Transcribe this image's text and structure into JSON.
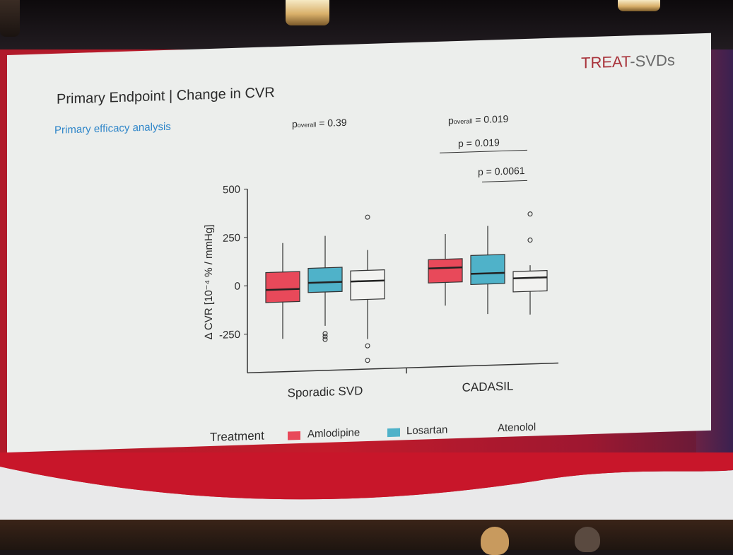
{
  "slide": {
    "brand_a": "TREAT",
    "brand_b": "-SVDs",
    "title": "Primary Endpoint | Change in CVR",
    "subtitle": "Primary efficacy analysis",
    "p_overall_label": "p",
    "p_overall_sub": "overall",
    "p_sporadic": " = 0.39",
    "p_cadasil": " = 0.019",
    "p_pair1": "p = 0.019",
    "p_pair2": "p = 0.0061"
  },
  "legend": {
    "title": "Treatment",
    "items": [
      {
        "label": "Amlodipine",
        "color": "#e8495a"
      },
      {
        "label": "Losartan",
        "color": "#4fb2c9"
      },
      {
        "label": "Atenolol",
        "color": "#f2f2f0"
      }
    ]
  },
  "chart_data": {
    "type": "box",
    "ylabel": "Δ CVR [10⁻⁴ % / mmHg]",
    "ylim": [
      -450,
      500
    ],
    "yticks": [
      500,
      250,
      0,
      -250
    ],
    "categories": [
      "Sporadic SVD",
      "CADASIL"
    ],
    "series": [
      {
        "name": "Amlodipine",
        "color": "#e8495a",
        "boxes": [
          {
            "q1": -90,
            "median": -25,
            "q3": 65,
            "whisker_low": -280,
            "whisker_high": 215,
            "outliers": []
          },
          {
            "q1": -15,
            "median": 60,
            "q3": 105,
            "whisker_low": -135,
            "whisker_high": 235,
            "outliers": []
          }
        ]
      },
      {
        "name": "Losartan",
        "color": "#4fb2c9",
        "boxes": [
          {
            "q1": -45,
            "median": 5,
            "q3": 80,
            "whisker_low": -220,
            "whisker_high": 245,
            "outliers": [
              -260,
              -275,
              -290
            ]
          },
          {
            "q1": -30,
            "median": 25,
            "q3": 120,
            "whisker_low": -185,
            "whisker_high": 270,
            "outliers": []
          }
        ]
      },
      {
        "name": "Atenolol",
        "color": "#f2f2f0",
        "boxes": [
          {
            "q1": -90,
            "median": 5,
            "q3": 60,
            "whisker_low": -295,
            "whisker_high": 165,
            "outliers": [
              335,
              -330,
              -405
            ]
          },
          {
            "q1": -75,
            "median": -5,
            "q3": 30,
            "whisker_low": -195,
            "whisker_high": 60,
            "outliers": [
              325,
              190
            ]
          }
        ]
      }
    ]
  }
}
